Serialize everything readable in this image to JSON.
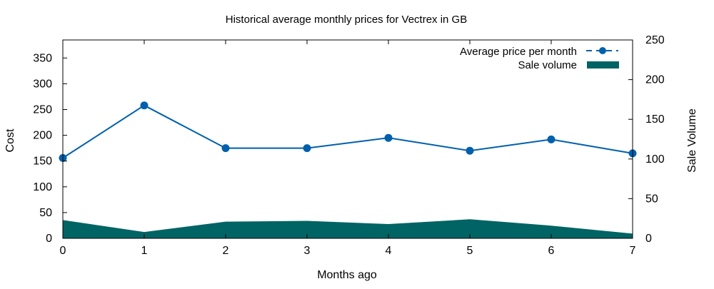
{
  "chart_data": {
    "type": "line",
    "title": "Historical average monthly prices for Vectrex in GB",
    "xlabel": "Months ago",
    "ylabel": "Cost",
    "y2label": "Sale Volume",
    "x": [
      0,
      1,
      2,
      3,
      4,
      5,
      6,
      7
    ],
    "xlim": [
      0,
      7
    ],
    "ylim": [
      0,
      385
    ],
    "y2lim": [
      0,
      250
    ],
    "xticks": [
      0,
      1,
      2,
      3,
      4,
      5,
      6,
      7
    ],
    "yticks": [
      0,
      50,
      100,
      150,
      200,
      250,
      300,
      350
    ],
    "y2ticks": [
      0,
      50,
      100,
      150,
      200,
      250
    ],
    "grid": false,
    "legend_position": "top-right",
    "series": [
      {
        "name": "Average price per month",
        "type": "line",
        "axis": "left",
        "color": "#0060ad",
        "values": [
          156,
          258,
          175,
          175,
          195,
          170,
          192,
          165
        ]
      },
      {
        "name": "Sale volume",
        "type": "area",
        "axis": "right",
        "color": "#006464",
        "values": [
          23,
          8,
          21,
          22,
          18,
          24,
          16,
          6
        ]
      }
    ]
  }
}
